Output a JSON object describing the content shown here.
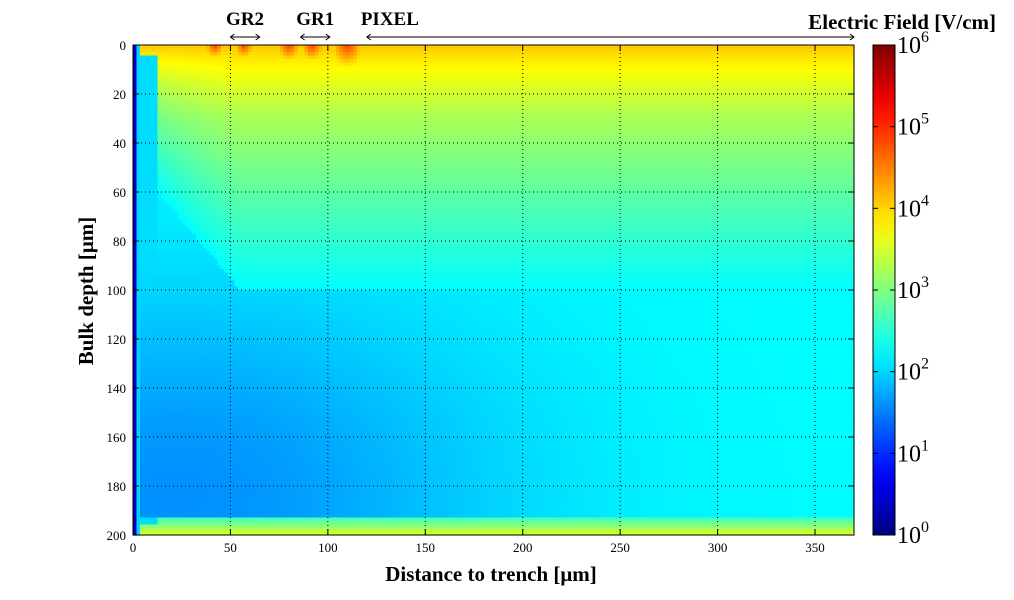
{
  "chart_data": {
    "type": "heatmap",
    "title": "Electric Field [V/cm]",
    "xlabel": "Distance to trench [μm]",
    "ylabel": "Bulk depth [μm]",
    "xlim": [
      0,
      370
    ],
    "ylim": [
      0,
      200
    ],
    "y_inverted": true,
    "xticks": [
      0,
      50,
      100,
      150,
      200,
      250,
      300,
      350
    ],
    "yticks": [
      0,
      20,
      40,
      60,
      80,
      100,
      120,
      140,
      160,
      180,
      200
    ],
    "grid": true,
    "grid_style": "dotted",
    "colorscale": "jet",
    "color_scale_type": "log",
    "colorbar": {
      "label": "Electric Field [V/cm]",
      "range": [
        1,
        1000000
      ],
      "ticks": [
        1,
        10,
        100,
        1000,
        10000,
        100000,
        1000000
      ],
      "tick_labels": [
        {
          "base": "10",
          "exp": "0"
        },
        {
          "base": "10",
          "exp": "1"
        },
        {
          "base": "10",
          "exp": "2"
        },
        {
          "base": "10",
          "exp": "3"
        },
        {
          "base": "10",
          "exp": "4"
        },
        {
          "base": "10",
          "exp": "5"
        },
        {
          "base": "10",
          "exp": "6"
        }
      ]
    },
    "annotations": [
      {
        "text": "GR2",
        "x_start": 50,
        "x_end": 65
      },
      {
        "text": "GR1",
        "x_start": 86,
        "x_end": 101
      },
      {
        "text": "PIXEL",
        "x_start": 120,
        "x_end": 370
      }
    ],
    "field_description": {
      "top_surface_region_log10": [
        3.5,
        4.1
      ],
      "bulk_background_log10": 2.25,
      "minimum_region_log10": 1.6,
      "minimum_location": {
        "x": 22,
        "y": 183
      },
      "trench_wall_log10": 0.4
    }
  }
}
